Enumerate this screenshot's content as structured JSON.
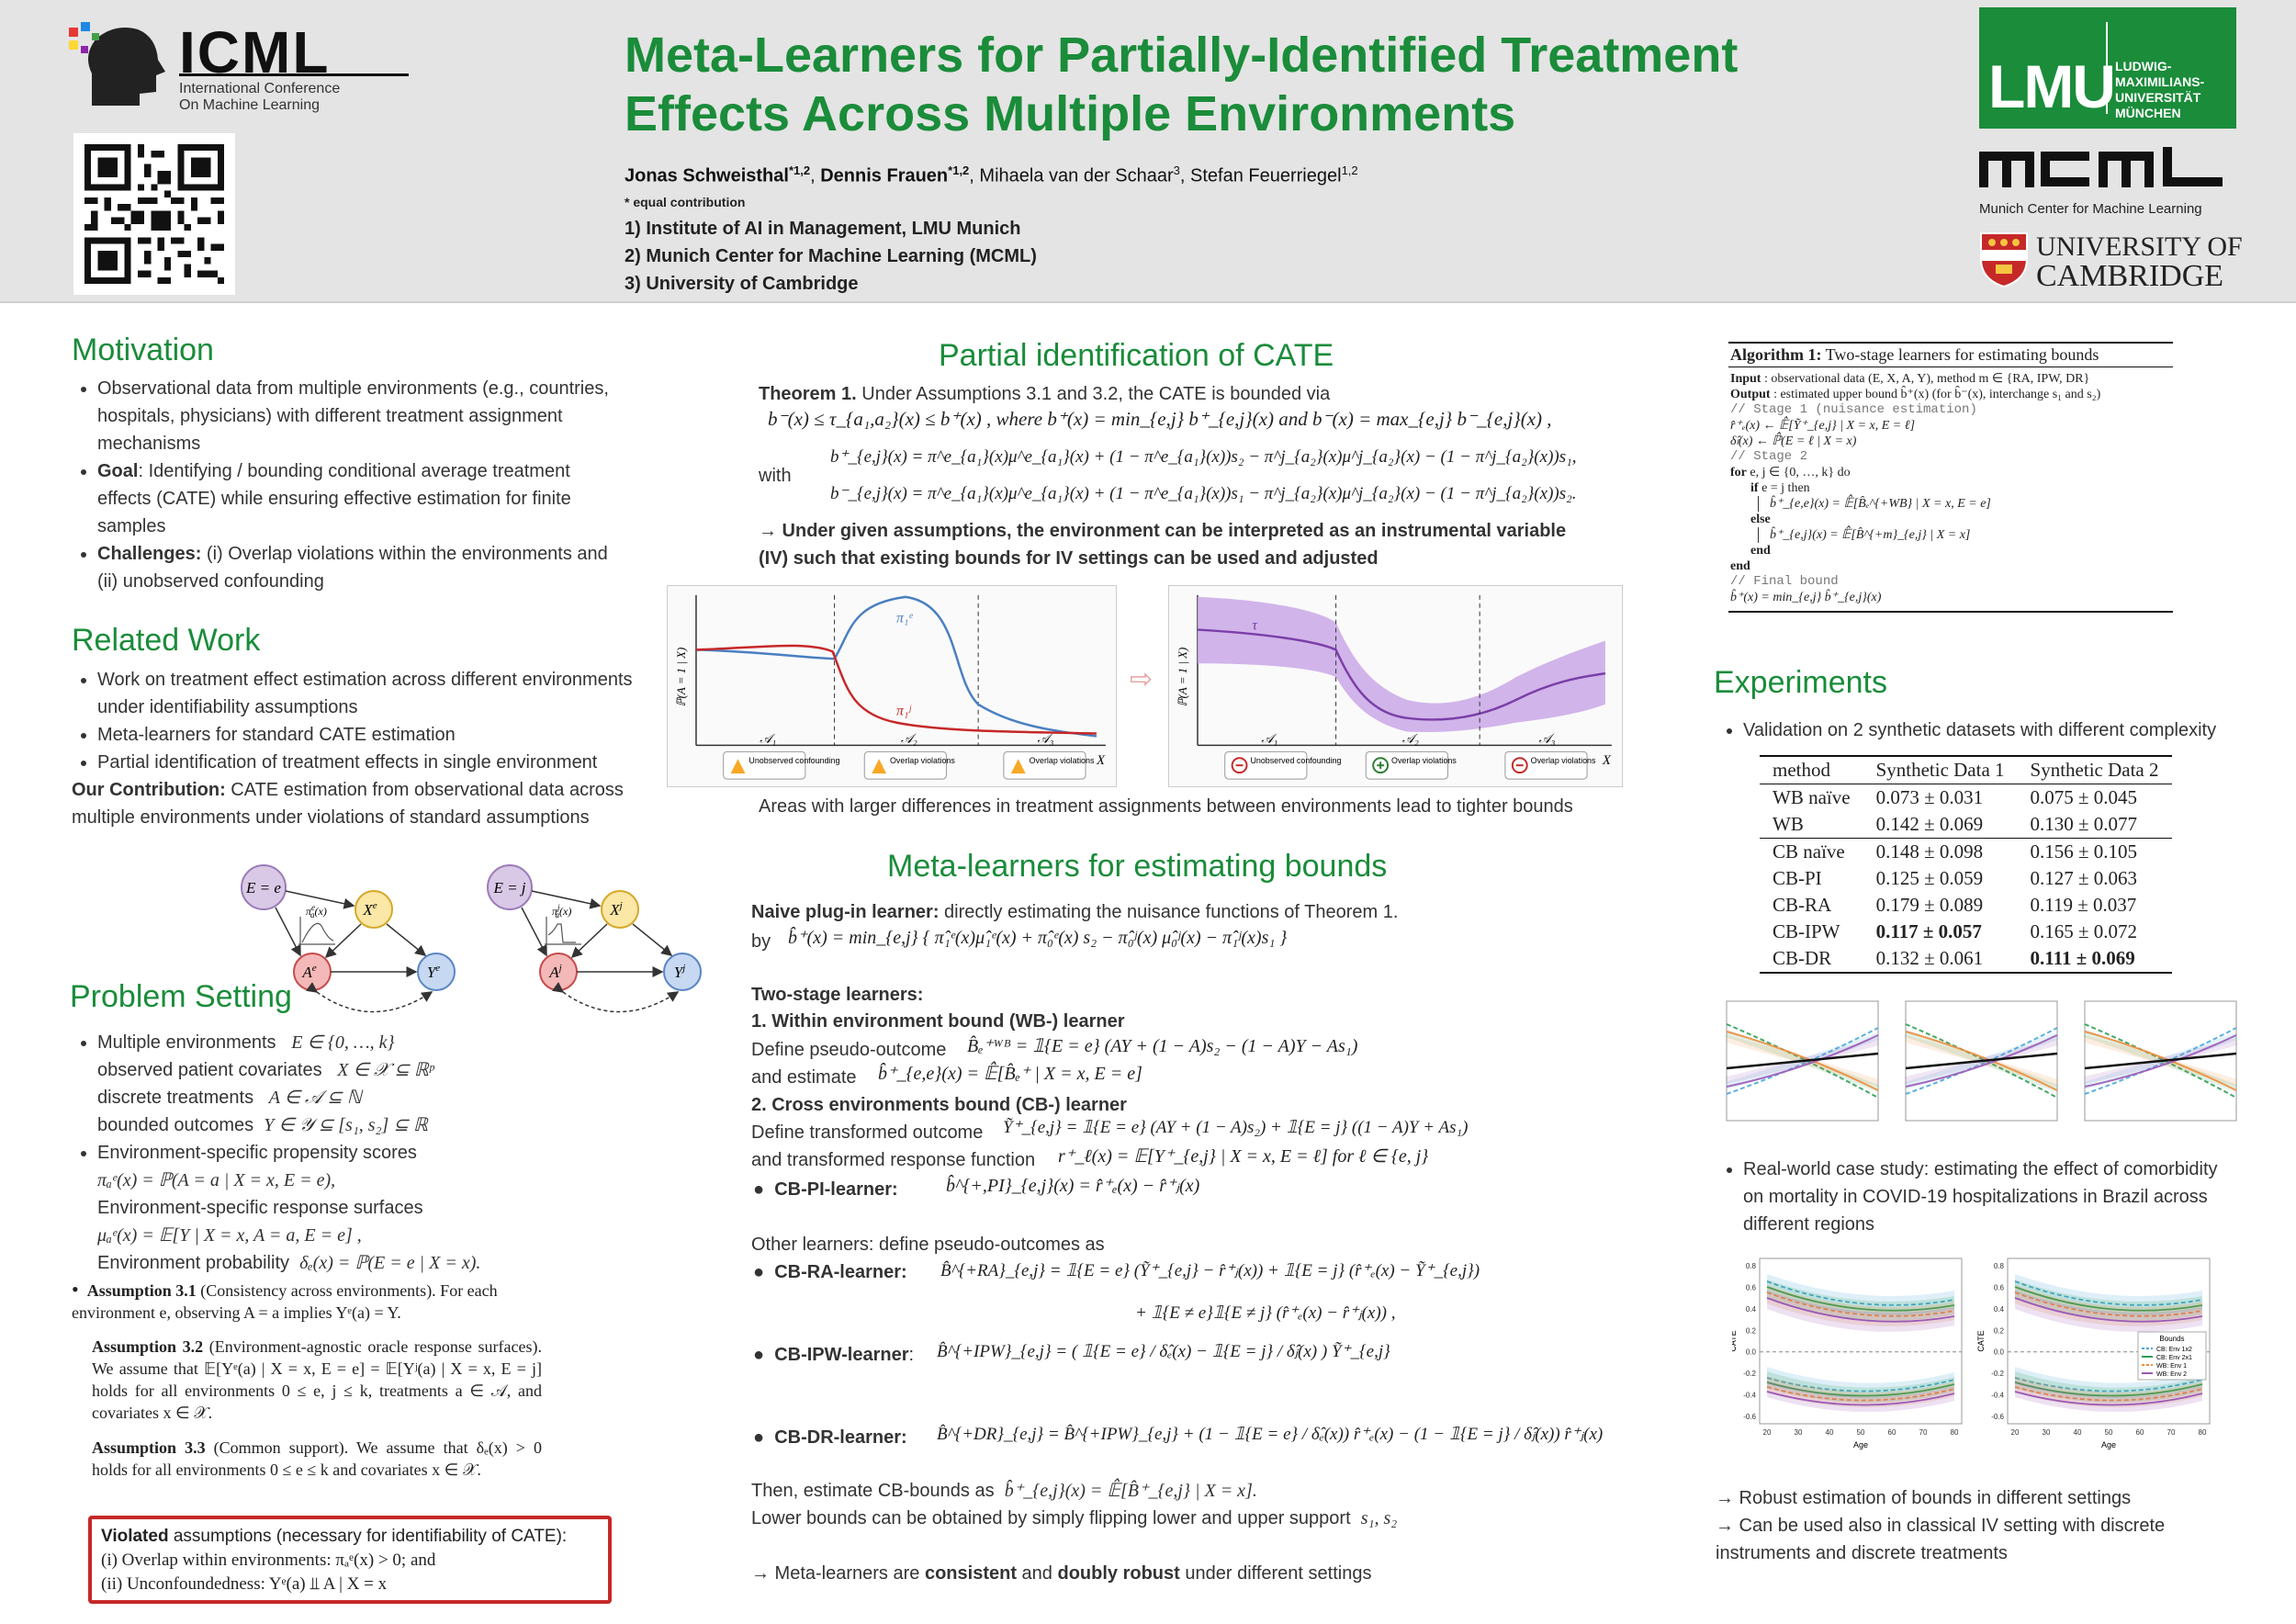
{
  "header": {
    "logo_icml_title": "ICML",
    "logo_icml_sub1": "International Conference",
    "logo_icml_sub2": "On Machine Learning",
    "title_line1": "Meta-Learners for Partially-Identified Treatment",
    "title_line2": "Effects Across Multiple Environments",
    "authors": [
      {
        "name": "Jonas Schweisthal",
        "sup": "*1,2",
        "bold": true
      },
      {
        "name": "Dennis Frauen",
        "sup": "*1,2",
        "bold": true
      },
      {
        "name": "Mihaela van der Schaar",
        "sup": "3",
        "bold": false
      },
      {
        "name": "Stefan Feuerriegel",
        "sup": "1,2",
        "bold": false
      }
    ],
    "equal_contribution": "* equal contribution",
    "affiliations": [
      "1) Institute of AI in Management, LMU Munich",
      "2) Munich Center for Machine Learning (MCML)",
      "3) University of Cambridge"
    ],
    "lmu_logo": "LMU",
    "lmu_text": [
      "LUDWIG-",
      "MAXIMILIANS-",
      "UNIVERSITÄT",
      "MÜNCHEN"
    ],
    "mcml_logo": "mcml",
    "mcml_sub": "Munich Center for Machine Learning",
    "cambridge_line1": "UNIVERSITY OF",
    "cambridge_line2": "CAMBRIDGE"
  },
  "motivation": {
    "title": "Motivation",
    "items": [
      {
        "lead": "",
        "text": "Observational data from multiple environments (e.g., countries, hospitals, physicians) with different treatment assignment mechanisms"
      },
      {
        "lead": "Goal",
        "text": ": Identifying / bounding conditional average treatment effects (CATE) while ensuring effective estimation for finite samples"
      },
      {
        "lead": "Challenges:",
        "text": " (i) Overlap violations within the environments and (ii) unobserved confounding"
      }
    ]
  },
  "related": {
    "title": "Related Work",
    "items": [
      "Work on treatment effect estimation across different environments under identifiability assumptions",
      "Meta-learners for standard CATE estimation",
      "Partial identification of treatment effects in single environment"
    ],
    "contribution_lead": "Our Contribution:",
    "contribution_text": " CATE estimation from observational data across multiple environments under violations of standard assumptions"
  },
  "dag": {
    "left": {
      "env": "E = e",
      "x": "X",
      "xsup": "e",
      "a": "A",
      "asup": "e",
      "y": "Y",
      "ysup": "e",
      "pi": "π",
      "pisub": "a",
      "pisup": "e",
      "piarg": "(x)"
    },
    "right": {
      "env": "E = j",
      "x": "X",
      "xsup": "j",
      "a": "A",
      "asup": "j",
      "y": "Y",
      "ysup": "j",
      "pi": "π",
      "pisub": "a",
      "pisup": "j",
      "piarg": "(x)"
    }
  },
  "problem": {
    "title": "Problem Setting",
    "b1_l1": "Multiple environments",
    "b1_m1": "E ∈ {0, …, k}",
    "b1_l2": "observed patient covariates",
    "b1_m2": "X ∈ 𝒳 ⊆ ℝᵖ",
    "b1_l3": "discrete treatments",
    "b1_m3": "A ∈ 𝒜 ⊆ ℕ",
    "b1_l4": "bounded outcomes",
    "b1_m4": "Y ∈ 𝒴 ⊆ [s₁, s₂] ⊆ ℝ",
    "b2_l1": "Environment-specific propensity scores",
    "b2_m1": "πₐᵉ(x) = ℙ(A = a | X = x, E = e),",
    "b2_l2": "Environment-specific response surfaces",
    "b2_m2": "μₐᵉ(x) = 𝔼[Y | X = x, A = a, E = e] ,",
    "b2_l3": "Environment probability",
    "b2_m3": "δₑ(x) = ℙ(E = e | X = x).",
    "a31_lead": "Assumption 3.1",
    "a31_text": " (Consistency across environments). For each environment e, observing A = a implies Yᵉ(a) = Y.",
    "a32_lead": "Assumption 3.2",
    "a32_text": " (Environment-agnostic oracle response surfaces). We assume that 𝔼[Yᵉ(a) | X = x, E = e] = 𝔼[Yʲ(a) | X = x, E = j] holds for all environments 0 ≤ e, j ≤ k, treatments a ∈ 𝒜, and covariates x ∈ 𝒳.",
    "a33_lead": "Assumption 3.3",
    "a33_text": " (Common support). We assume that δₑ(x) > 0 holds for all environments 0 ≤ e ≤ k and covariates x ∈ 𝒳.",
    "violated_lead": "Violated",
    "violated_text": " assumptions (necessary for identifiability of CATE):",
    "violated_i": "(i)  Overlap within environments: πₐᵉ(x) > 0; and",
    "violated_ii": "(ii) Unconfoundedness: Yᵉ(a) ⫫ A | X = x"
  },
  "partial": {
    "title": "Partial identification of CATE",
    "thm_lead": "Theorem 1.",
    "thm_text": " Under Assumptions 3.1 and 3.2, the CATE is bounded via",
    "bound_eq": "b⁻(x) ≤ τ_{a₁,a₂}(x) ≤ b⁺(x) ,  where  b⁺(x) = min_{e,j} b⁺_{e,j}(x)   and   b⁻(x) = max_{e,j} b⁻_{e,j}(x) ,",
    "with": "with",
    "eq_plus": "b⁺_{e,j}(x) = π^e_{a₁}(x)μ^e_{a₁}(x) + (1 − π^e_{a₁}(x))s₂ − π^j_{a₂}(x)μ^j_{a₂}(x) − (1 − π^j_{a₂}(x))s₁,",
    "eq_minus": "b⁻_{e,j}(x) = π^e_{a₁}(x)μ^e_{a₁}(x) + (1 − π^e_{a₁}(x))s₁ − π^j_{a₂}(x)μ^j_{a₂}(x) − (1 − π^j_{a₂}(x))s₂.",
    "iv_note": "→ Under given assumptions, the environment can be interpreted as an instrumental variable (IV) such that existing bounds for IV settings can be used and adjusted",
    "fig_left": {
      "ylabel": "ℙ(A = 1 | X)",
      "xlabel": "X",
      "region_labels": [
        "𝒜₁",
        "𝒜₂",
        "𝒜₃"
      ],
      "curve_labels": [
        "π₁ᵉ",
        "π₁ʲ"
      ],
      "badges": [
        "Unobserved confounding",
        "Overlap violations",
        "Overlap violations"
      ]
    },
    "fig_right": {
      "ylabel": "ℙ(A = 1 | X)",
      "xlabel": "X",
      "region_labels": [
        "𝒜₁",
        "𝒜₂",
        "𝒜₃"
      ],
      "curve_label": "τ",
      "badges": [
        "Unobserved confounding",
        "Overlap violations",
        "Overlap violations"
      ]
    },
    "caption": "Areas with larger differences in treatment assignments between environments lead to tighter bounds"
  },
  "meta": {
    "title": "Meta-learners for estimating bounds",
    "naive_lead": "Naive plug-in learner:",
    "naive_text": " directly estimating the nuisance functions of Theorem 1.",
    "naive_by": "by",
    "naive_eq": "b̂⁺(x) = min_{e,j} { π̂₁ᵉ(x)μ̂₁ᵉ(x) + π̂₀ᵉ(x) s₂ − π̂₀ʲ(x) μ̂₀ʲ(x) − π̂₁ʲ(x)s₁ }",
    "two_stage": "Two-stage learners:",
    "wb_title": "1.  Within environment bound (WB-) learner",
    "wb_l1": "Define pseudo-outcome",
    "wb_eq1": "B̂ₑ⁺ᵂᴮ = 𝟙{E = e} (AY + (1 − A)s₂ − (1 − A)Y − As₁)",
    "wb_l2": "and estimate",
    "wb_eq2": "b̂⁺_{e,e}(x) = 𝔼̂[B̂ₑ⁺ | X = x, E = e]",
    "cb_title": "2.  Cross environments bound (CB-) learner",
    "cb_l1": "Define transformed outcome",
    "cb_eq1": "Ỹ⁺_{e,j} = 𝟙{E = e} (AY + (1 − A)s₂) + 𝟙{E = j} ((1 − A)Y + As₁)",
    "cb_l2": "and transformed response function",
    "cb_eq2": "r⁺_ℓ(x) = 𝔼[Y⁺_{e,j} | X = x, E = ℓ] for ℓ ∈ {e, j}",
    "cbpi_lead": "CB-PI-learner:",
    "cbpi_eq": "b̂^{+,PI}_{e,j}(x) = r̂⁺ₑ(x) − r̂⁺ⱼ(x)",
    "other": "Other learners: define pseudo-outcomes as",
    "cbra_lead": "CB-RA-learner:",
    "cbra_eq1": "B̂^{+RA}_{e,j} = 𝟙{E = e} (Ỹ⁺_{e,j} − r̂⁺ⱼ(x)) + 𝟙{E = j} (r̂⁺ₑ(x) − Ỹ⁺_{e,j})",
    "cbra_eq2": "+ 𝟙{E ≠ e}𝟙{E ≠ j} (r̂⁺ₑ(x) − r̂⁺ⱼ(x)) ,",
    "cbipw_lead": "CB-IPW-learner",
    "cbipw_eq": "B̂^{+IPW}_{e,j} = ( 𝟙{E = e} / δ̂ₑ(x) − 𝟙{E = j} / δ̂ⱼ(x) ) Ỹ⁺_{e,j}",
    "cbdr_lead": "CB-DR-learner:",
    "cbdr_eq": "B̂^{+DR}_{e,j} = B̂^{+IPW}_{e,j} + (1 − 𝟙{E = e} / δ̂ₑ(x)) r̂⁺ₑ(x) − (1 − 𝟙{E = j} / δ̂ⱼ(x)) r̂⁺ⱼ(x)",
    "then_l": "Then, estimate CB-bounds as",
    "then_eq": "b̂⁺_{e,j}(x) = 𝔼̂[B̂⁺_{e,j} | X = x].",
    "lower": "Lower bounds can be obtained by simply flipping lower and upper support",
    "lower_m": "s₁, s₂",
    "final_pre": "→ Meta-learners are ",
    "final_b1": "consistent",
    "final_mid": " and ",
    "final_b2": "doubly robust",
    "final_post": " under different settings"
  },
  "algorithm": {
    "title_lead": "Algorithm 1:",
    "title_text": " Two-stage learners for estimating bounds",
    "lines": [
      {
        "indent": 0,
        "kind": "io",
        "lead": "Input",
        "text": "  : observational data (E, X, A, Y), method m ∈ {RA, IPW, DR}"
      },
      {
        "indent": 0,
        "kind": "io",
        "lead": "Output",
        "text": " : estimated upper bound b̂⁺(x) (for b̂⁻(x), interchange s₁ and s₂)"
      },
      {
        "indent": 0,
        "kind": "comment",
        "lead": "",
        "text": "// Stage 1 (nuisance estimation)"
      },
      {
        "indent": 0,
        "kind": "plain",
        "lead": "",
        "text": "r̂⁺ₑ(x) ← 𝔼̂[Ỹ⁺_{e,j} | X = x, E = ℓ]"
      },
      {
        "indent": 0,
        "kind": "plain",
        "lead": "",
        "text": "δ̂ₗ(x) ← ℙ̂(E = ℓ | X = x)"
      },
      {
        "indent": 0,
        "kind": "comment",
        "lead": "",
        "text": "// Stage 2"
      },
      {
        "indent": 0,
        "kind": "kw",
        "lead": "for",
        "text": " e, j ∈ {0, …, k} do"
      },
      {
        "indent": 1,
        "kind": "kw",
        "lead": "if",
        "text": " e = j then"
      },
      {
        "indent": 2,
        "kind": "plain",
        "lead": "",
        "text": "b̂⁺_{e,e}(x) = 𝔼̂[B̂ₑ^{+WB} | X = x, E = e]"
      },
      {
        "indent": 1,
        "kind": "kw",
        "lead": "else",
        "text": ""
      },
      {
        "indent": 2,
        "kind": "plain",
        "lead": "",
        "text": "b̂⁺_{e,j}(x) = 𝔼̂[B̂^{+m}_{e,j} | X = x]"
      },
      {
        "indent": 1,
        "kind": "kw",
        "lead": "end",
        "text": ""
      },
      {
        "indent": 0,
        "kind": "kw",
        "lead": "end",
        "text": ""
      },
      {
        "indent": 0,
        "kind": "comment",
        "lead": "",
        "text": "// Final bound"
      },
      {
        "indent": 0,
        "kind": "plain",
        "lead": "",
        "text": "b̂⁺(x) = min_{e,j} b̂⁺_{e,j}(x)"
      }
    ]
  },
  "experiments": {
    "title": "Experiments",
    "bullet1": "Validation on 2 synthetic datasets with different complexity",
    "table": {
      "headers": [
        "method",
        "Synthetic Data 1",
        "Synthetic Data 2"
      ],
      "rows": [
        {
          "m": "WB naïve",
          "d1": "0.073 ± 0.031",
          "d2": "0.075 ± 0.045",
          "b1": false,
          "b2": false,
          "sep": false
        },
        {
          "m": "WB",
          "d1": "0.142 ± 0.069",
          "d2": "0.130 ± 0.077",
          "b1": false,
          "b2": false,
          "sep": false
        },
        {
          "m": "CB naïve",
          "d1": "0.148 ± 0.098",
          "d2": "0.156 ± 0.105",
          "b1": false,
          "b2": false,
          "sep": true
        },
        {
          "m": "CB-PI",
          "d1": "0.125 ± 0.059",
          "d2": "0.127 ± 0.063",
          "b1": false,
          "b2": false,
          "sep": false
        },
        {
          "m": "CB-RA",
          "d1": "0.179 ± 0.089",
          "d2": "0.119 ± 0.037",
          "b1": false,
          "b2": false,
          "sep": false
        },
        {
          "m": "CB-IPW",
          "d1": "0.117 ± 0.057",
          "d2": "0.165 ± 0.072",
          "b1": true,
          "b2": false,
          "sep": false
        },
        {
          "m": "CB-DR",
          "d1": "0.132 ± 0.061",
          "d2": "0.111 ± 0.069",
          "b1": false,
          "b2": true,
          "sep": false
        }
      ]
    },
    "bullet2": "Real-world case study: estimating the effect of comorbidity on mortality in COVID-19 hospitalizations in Brazil across different regions",
    "conc1": "→ Robust estimation of bounds in different settings",
    "conc2": "→ Can be used also in classical IV setting with discrete instruments and discrete treatments",
    "covid_xlabel": "Age",
    "covid_ylabel": "CATE",
    "covid_xticks": [
      "20",
      "30",
      "40",
      "50",
      "60",
      "70",
      "80"
    ],
    "covid_yticks": [
      "0.8",
      "0.6",
      "0.4",
      "0.2",
      "0.0",
      "-0.2",
      "-0.4",
      "-0.6"
    ],
    "legend_title": "Bounds",
    "legend_items": [
      "CB: Env 1x2",
      "CB: Env 2x1",
      "WB: Env 1",
      "WB: Env 2"
    ],
    "colors": {
      "green": "#1a8c3a",
      "red": "#c62828",
      "purple": "#7b3fa8",
      "blue": "#4a7fc1"
    }
  }
}
